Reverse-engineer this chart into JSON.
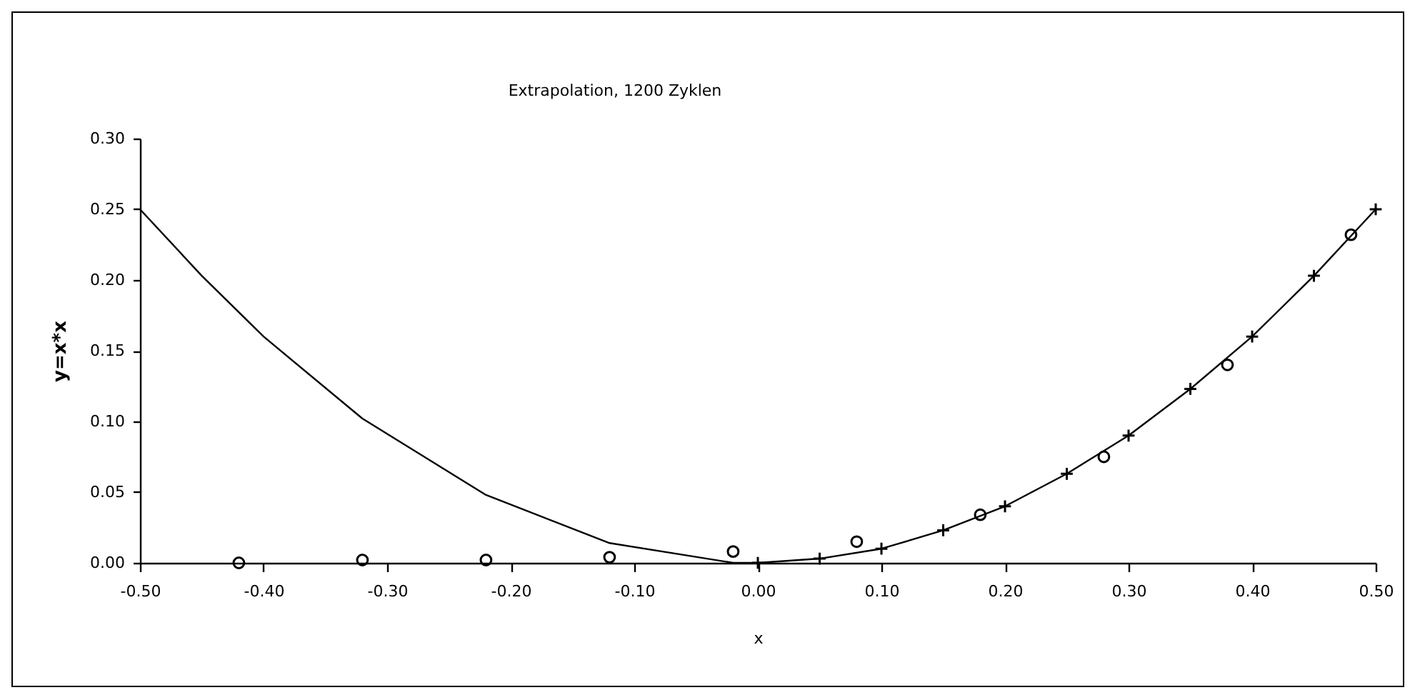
{
  "chart_data": {
    "type": "line",
    "title": "Extrapolation, 1200 Zyklen",
    "xlabel": "x",
    "ylabel": "y=x*x",
    "xlim": [
      -0.5,
      0.5
    ],
    "xticks": [
      {
        "value": -0.5,
        "label": "-0.50"
      },
      {
        "value": -0.4,
        "label": "-0.40"
      },
      {
        "value": -0.3,
        "label": "-0.30"
      },
      {
        "value": -0.2,
        "label": "-0.20"
      },
      {
        "value": -0.1,
        "label": "-0.10"
      },
      {
        "value": 0,
        "label": "0.00"
      },
      {
        "value": 0.1,
        "label": "0.10"
      },
      {
        "value": 0.2,
        "label": "0.20"
      },
      {
        "value": 0.3,
        "label": "0.30"
      },
      {
        "value": 0.4,
        "label": "0.40"
      },
      {
        "value": 0.5,
        "label": "0.50"
      }
    ],
    "ylim": [
      0,
      0.3
    ],
    "yticks": [
      {
        "value": 0,
        "label": "0.00"
      },
      {
        "value": 0.05,
        "label": "0.05"
      },
      {
        "value": 0.1,
        "label": "0.10"
      },
      {
        "value": 0.15,
        "label": "0.15"
      },
      {
        "value": 0.2,
        "label": "0.20"
      },
      {
        "value": 0.25,
        "label": "0.25"
      },
      {
        "value": 0.3,
        "label": "0.30"
      }
    ],
    "grid": false,
    "line_style": "solid",
    "series": [
      {
        "marker": "none",
        "color": "#000000",
        "x": [
          -0.5,
          -0.45,
          -0.4,
          -0.32,
          -0.22,
          -0.12,
          -0.02,
          0,
          0.05,
          0.1,
          0.15,
          0.2,
          0.25,
          0.3,
          0.35,
          0.4,
          0.45,
          0.5
        ],
        "values": [
          0.25,
          0.203,
          0.16,
          0.102,
          0.048,
          0.014,
          0.0,
          0.0,
          0.003,
          0.01,
          0.023,
          0.04,
          0.063,
          0.09,
          0.123,
          0.16,
          0.203,
          0.25
        ]
      },
      {
        "type": "scatter",
        "marker": "cross",
        "color": "#000000",
        "x": [
          0,
          0.05,
          0.1,
          0.15,
          0.2,
          0.25,
          0.3,
          0.35,
          0.4,
          0.45,
          0.5
        ],
        "values": [
          0.0,
          0.003,
          0.01,
          0.023,
          0.04,
          0.063,
          0.09,
          0.123,
          0.16,
          0.203,
          0.25
        ]
      },
      {
        "type": "scatter",
        "marker": "circle",
        "color": "#000000",
        "x": [
          -0.42,
          -0.32,
          -0.22,
          -0.12,
          -0.02,
          0.08,
          0.18,
          0.28,
          0.38,
          0.48
        ],
        "values": [
          0.0,
          0.002,
          0.002,
          0.004,
          0.008,
          0.015,
          0.034,
          0.075,
          0.14,
          0.232
        ]
      }
    ]
  }
}
